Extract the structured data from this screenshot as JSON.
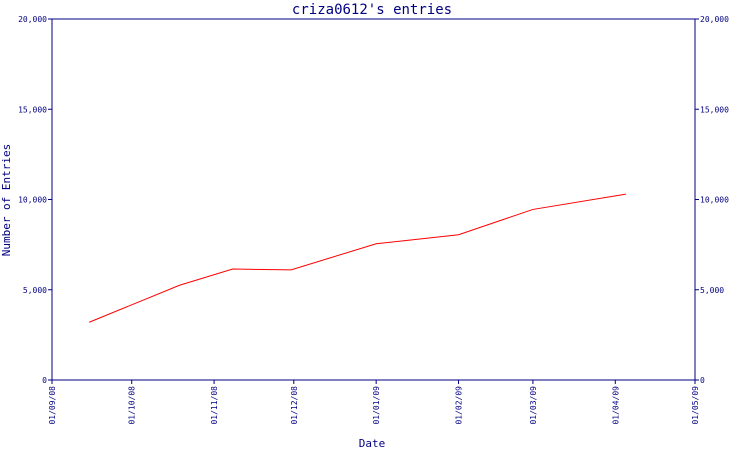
{
  "chart_data": {
    "type": "line",
    "title": "criza0612's entries",
    "xlabel": "Date",
    "ylabel": "Number of Entries",
    "x_ticks": [
      "01/09/08",
      "01/10/08",
      "01/11/08",
      "01/12/08",
      "01/01/09",
      "01/02/09",
      "01/03/09",
      "01/04/09",
      "01/05/09"
    ],
    "y_ticks": [
      "0",
      "5,000",
      "10,000",
      "15,000",
      "20,000"
    ],
    "ylim": [
      0,
      20000
    ],
    "xlim": [
      "2008-09-01",
      "2009-05-01"
    ],
    "grid": false,
    "series": [
      {
        "color": "#ff0000",
        "points": [
          {
            "x": "2008-09-15",
            "y": 3200
          },
          {
            "x": "2008-10-19",
            "y": 5250
          },
          {
            "x": "2008-11-08",
            "y": 6150
          },
          {
            "x": "2008-11-30",
            "y": 6100
          },
          {
            "x": "2009-01-01",
            "y": 7550
          },
          {
            "x": "2009-02-01",
            "y": 8050
          },
          {
            "x": "2009-03-01",
            "y": 9450
          },
          {
            "x": "2009-04-05",
            "y": 10300
          }
        ]
      }
    ],
    "colors": {
      "axis": "#000080",
      "text": "#000080",
      "line": "#ff0000",
      "background": "#ffffff"
    }
  }
}
